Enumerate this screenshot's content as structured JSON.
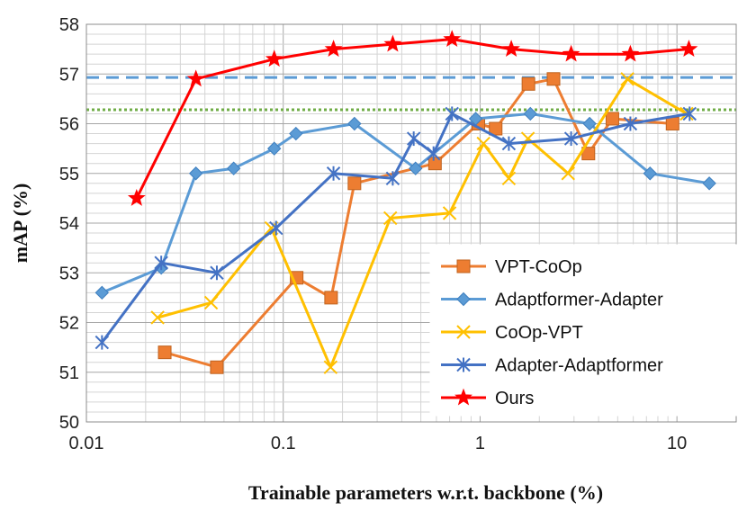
{
  "chart_data": {
    "type": "line",
    "xlabel": "Trainable parameters w.r.t. backbone (%)",
    "ylabel": "mAP (%)",
    "x_scale": "log",
    "xlim": [
      0.01,
      20
    ],
    "ylim": [
      50,
      58
    ],
    "x_ticks": [
      0.01,
      0.1,
      1,
      10
    ],
    "x_tick_labels": [
      "0.01",
      "0.1",
      "1",
      "10"
    ],
    "y_ticks": [
      50,
      51,
      52,
      53,
      54,
      55,
      56,
      57,
      58
    ],
    "y_tick_labels": [
      "50",
      "51",
      "52",
      "53",
      "54",
      "55",
      "56",
      "57",
      "58"
    ],
    "grid": "major and minor",
    "legend_position": "bottom-right",
    "series": [
      {
        "name": "VPT-CoOp",
        "color": "#ED7D31",
        "marker": "square",
        "x": [
          0.025,
          0.046,
          0.117,
          0.175,
          0.23,
          0.59,
          0.98,
          1.2,
          1.76,
          2.36,
          3.55,
          4.7,
          9.5
        ],
        "y": [
          51.4,
          51.1,
          52.9,
          52.5,
          54.8,
          55.2,
          56.0,
          55.9,
          56.8,
          56.9,
          55.4,
          56.1,
          56.0
        ]
      },
      {
        "name": "Adaptformer-Adapter",
        "color": "#5B9BD5",
        "marker": "diamond",
        "x": [
          0.012,
          0.024,
          0.036,
          0.056,
          0.09,
          0.116,
          0.23,
          0.47,
          0.95,
          1.8,
          3.6,
          7.3,
          14.6
        ],
        "y": [
          52.6,
          53.1,
          55.0,
          55.1,
          55.5,
          55.8,
          56.0,
          55.1,
          56.1,
          56.2,
          56.0,
          55.0,
          54.8
        ]
      },
      {
        "name": "CoOp-VPT",
        "color": "#FFC000",
        "marker": "x",
        "x": [
          0.023,
          0.043,
          0.087,
          0.174,
          0.35,
          0.7,
          1.04,
          1.4,
          1.75,
          2.8,
          5.6,
          11.2
        ],
        "y": [
          52.1,
          52.4,
          53.9,
          51.1,
          54.1,
          54.2,
          55.6,
          54.9,
          55.7,
          55.0,
          56.9,
          56.2
        ]
      },
      {
        "name": "Adapter-Adaptformer",
        "color": "#4472C4",
        "marker": "asterisk",
        "x": [
          0.012,
          0.024,
          0.046,
          0.092,
          0.18,
          0.36,
          0.46,
          0.58,
          0.72,
          1.4,
          2.9,
          5.8,
          11.6
        ],
        "y": [
          51.6,
          53.2,
          53.0,
          53.9,
          55.0,
          54.9,
          55.7,
          55.4,
          56.2,
          55.6,
          55.7,
          56.0,
          56.2
        ]
      },
      {
        "name": "Ours",
        "color": "#FF0000",
        "marker": "star",
        "x": [
          0.018,
          0.036,
          0.09,
          0.18,
          0.36,
          0.72,
          1.44,
          2.9,
          5.8,
          11.5
        ],
        "y": [
          54.5,
          56.9,
          57.3,
          57.5,
          57.6,
          57.7,
          57.5,
          57.4,
          57.4,
          57.5
        ]
      }
    ],
    "reference_lines": [
      {
        "style": "dashed",
        "color": "#5B9BD5",
        "y": 56.93
      },
      {
        "style": "dotted",
        "color": "#70AD47",
        "y": 56.28
      }
    ]
  }
}
